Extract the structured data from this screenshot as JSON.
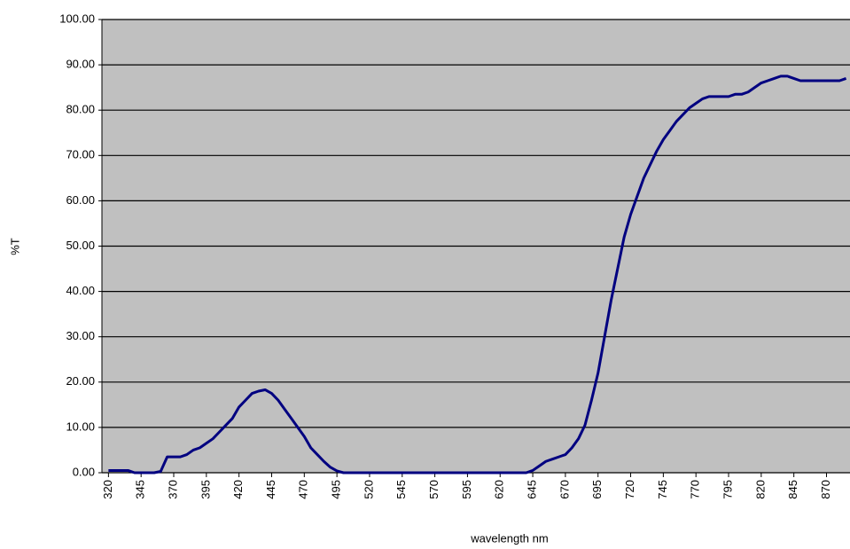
{
  "chart_data": {
    "type": "line",
    "x_label": "wavelength nm",
    "y_label": "%T",
    "x": [
      320,
      325,
      330,
      335,
      340,
      345,
      350,
      355,
      360,
      365,
      370,
      375,
      380,
      385,
      390,
      395,
      400,
      405,
      410,
      415,
      420,
      425,
      430,
      435,
      440,
      445,
      450,
      455,
      460,
      465,
      470,
      475,
      480,
      485,
      490,
      495,
      500,
      505,
      510,
      515,
      520,
      525,
      530,
      535,
      540,
      545,
      550,
      555,
      560,
      565,
      570,
      575,
      580,
      585,
      590,
      595,
      600,
      605,
      610,
      615,
      620,
      625,
      630,
      635,
      640,
      645,
      650,
      655,
      660,
      665,
      670,
      675,
      680,
      685,
      690,
      695,
      700,
      705,
      710,
      715,
      720,
      725,
      730,
      735,
      740,
      745,
      750,
      755,
      760,
      765,
      770,
      775,
      780,
      785,
      790,
      795,
      800,
      805,
      810,
      815,
      820,
      825,
      830,
      835,
      840,
      845,
      850,
      855,
      860,
      865,
      870,
      875,
      880,
      885
    ],
    "values": [
      0.5,
      0.5,
      0.5,
      0.5,
      0,
      0,
      0,
      0,
      0.3,
      3.5,
      3.5,
      3.5,
      4,
      5,
      5.5,
      6.5,
      7.5,
      9,
      10.5,
      12,
      14.5,
      16,
      17.5,
      18,
      18.3,
      17.5,
      16,
      14,
      12,
      10,
      8,
      5.5,
      4,
      2.5,
      1.2,
      0.4,
      0,
      0,
      0,
      0,
      0,
      0,
      0,
      0,
      0,
      0,
      0,
      0,
      0,
      0,
      0,
      0,
      0,
      0,
      0,
      0,
      0,
      0,
      0,
      0,
      0,
      0,
      0,
      0,
      0,
      0.5,
      1.5,
      2.5,
      3,
      3.5,
      4,
      5.5,
      7.5,
      10.5,
      16,
      22,
      30,
      38,
      45,
      52,
      57,
      61,
      65,
      68,
      71,
      73.5,
      75.5,
      77.5,
      79,
      80.5,
      81.5,
      82.5,
      83,
      83,
      83,
      83,
      83.5,
      83.5,
      84,
      85,
      86,
      86.5,
      87,
      87.5,
      87.5,
      87,
      86.5,
      86.5,
      86.5,
      86.5,
      86.5,
      86.5,
      86.5,
      87
    ],
    "color": "#000080",
    "xlim": [
      315,
      888
    ],
    "xticks": [
      320,
      345,
      370,
      395,
      420,
      445,
      470,
      495,
      520,
      545,
      570,
      595,
      620,
      645,
      670,
      695,
      720,
      745,
      770,
      795,
      820,
      845,
      870
    ],
    "ylim": [
      0,
      100
    ],
    "yticks": [
      {
        "value": 0,
        "label": "0.00"
      },
      {
        "value": 10,
        "label": "10.00"
      },
      {
        "value": 20,
        "label": "20.00"
      },
      {
        "value": 30,
        "label": "30.00"
      },
      {
        "value": 40,
        "label": "40.00"
      },
      {
        "value": 50,
        "label": "50.00"
      },
      {
        "value": 60,
        "label": "60.00"
      },
      {
        "value": 70,
        "label": "70.00"
      },
      {
        "value": 80,
        "label": "80.00"
      },
      {
        "value": 90,
        "label": "90.00"
      },
      {
        "value": 100,
        "label": "100.00"
      }
    ],
    "grid": true,
    "plot_background": "#c0c0c0"
  }
}
